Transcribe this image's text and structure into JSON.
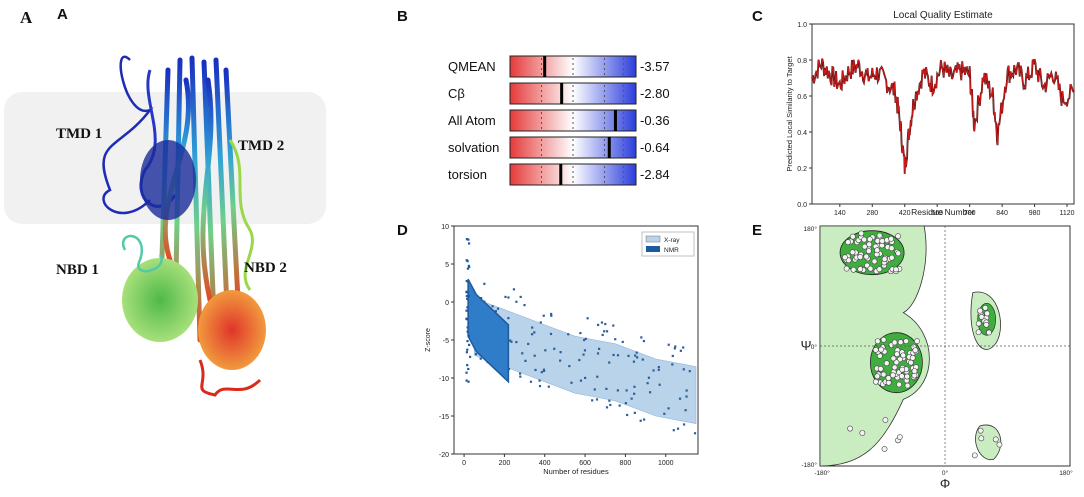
{
  "panels": {
    "A": {
      "letter_serif": "A",
      "letter_bold": "A",
      "labels": {
        "tmd1": "TMD 1",
        "tmd2": "TMD 2",
        "nbd1": "NBD 1",
        "nbd2": "NBD 2"
      }
    },
    "B": {
      "letter": "B"
    },
    "C": {
      "letter": "C"
    },
    "D": {
      "letter": "D"
    },
    "E": {
      "letter": "E"
    }
  },
  "colors": {
    "accent_red": "#cc1a1a",
    "dark_red": "#4a0a0a",
    "xray": "#b9d3ea",
    "nmr": "#1d5a9e",
    "rama_dark": "#3fae3f",
    "rama_light": "#c9edc0"
  },
  "chart_data": [
    {
      "id": "B",
      "type": "table",
      "rows": [
        {
          "name": "QMEAN",
          "value": "-3.57"
        },
        {
          "name": "Cβ",
          "value": "-2.80"
        },
        {
          "name": "All Atom",
          "value": "-0.36"
        },
        {
          "name": "solvation",
          "value": "-0.64"
        },
        {
          "name": "torsion",
          "value": "-2.84"
        }
      ]
    },
    {
      "id": "C",
      "type": "line",
      "title": "Local Quality Estimate",
      "xlabel": "Residue Number",
      "ylabel": "Predicted Local Similarity to Target",
      "xticks": [
        "140",
        "280",
        "420",
        "560",
        "700",
        "840",
        "980",
        "1120"
      ],
      "yticks": [
        "0.0",
        "0.2",
        "0.4",
        "0.6",
        "0.8",
        "1.0"
      ],
      "xlim": [
        20,
        1150
      ],
      "ylim": [
        0,
        1
      ],
      "x": [
        20,
        60,
        100,
        140,
        180,
        220,
        260,
        300,
        340,
        380,
        400,
        420,
        440,
        460,
        500,
        540,
        580,
        620,
        660,
        700,
        720,
        760,
        800,
        820,
        860,
        900,
        940,
        980,
        1020,
        1060,
        1100,
        1150
      ],
      "y": [
        0.7,
        0.78,
        0.72,
        0.66,
        0.74,
        0.77,
        0.7,
        0.73,
        0.68,
        0.62,
        0.45,
        0.2,
        0.42,
        0.58,
        0.73,
        0.66,
        0.76,
        0.7,
        0.74,
        0.72,
        0.44,
        0.71,
        0.6,
        0.38,
        0.72,
        0.75,
        0.68,
        0.77,
        0.65,
        0.73,
        0.58,
        0.62
      ]
    },
    {
      "id": "D",
      "type": "scatter",
      "xlabel": "Number of residues",
      "ylabel": "Z-score",
      "xticks": [
        "0",
        "200",
        "400",
        "600",
        "800",
        "1000"
      ],
      "yticks": [
        "10",
        "5",
        "0",
        "-5",
        "-10",
        "-15",
        "-20"
      ],
      "xlim": [
        -50,
        1160
      ],
      "ylim": [
        -20,
        10
      ],
      "legend": [
        "X-ray",
        "NMR"
      ],
      "series": [
        {
          "name": "X-ray",
          "x": [
            50,
            150,
            250,
            350,
            450,
            550,
            650,
            750,
            850,
            950,
            1050,
            1150
          ],
          "y": [
            -3,
            -4,
            -5,
            -6,
            -7,
            -8,
            -8.5,
            -9,
            -10,
            -11,
            -11.5,
            -12
          ]
        },
        {
          "name": "NMR",
          "x": [
            20,
            60,
            100,
            140,
            180,
            220
          ],
          "y": [
            -1,
            -3,
            -4,
            -5,
            -6,
            -7
          ]
        }
      ]
    },
    {
      "id": "E",
      "type": "scatter",
      "xlabel": "Φ",
      "ylabel": "Ψ",
      "xticks": [
        "-180°",
        "0°",
        "180°"
      ],
      "yticks": [
        "180°",
        "0°",
        "-180°"
      ],
      "xlim": [
        -180,
        180
      ],
      "ylim": [
        -180,
        180
      ]
    }
  ]
}
